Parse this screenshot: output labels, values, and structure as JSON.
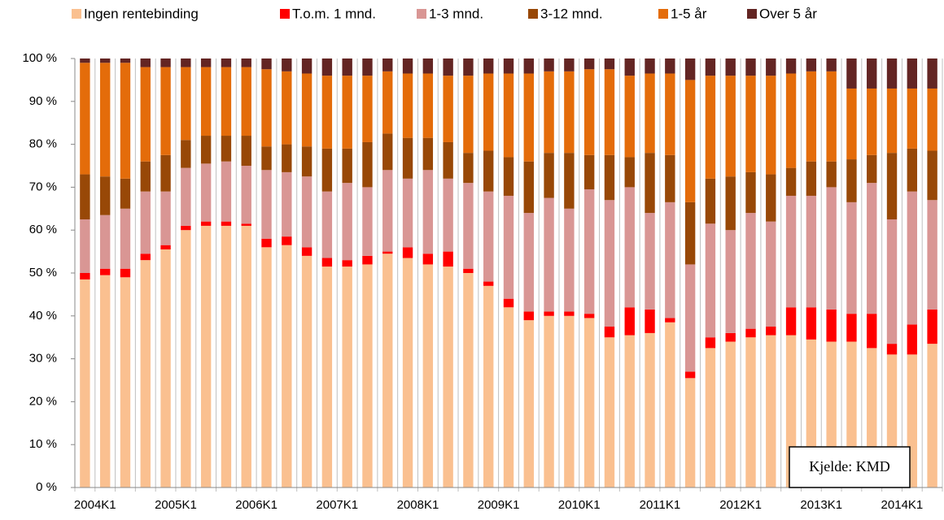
{
  "chart_data": {
    "type": "stacked-bar",
    "categories": [
      "2004K1",
      null,
      null,
      null,
      "2005K1",
      null,
      null,
      null,
      "2006K1",
      null,
      null,
      null,
      "2007K1",
      null,
      null,
      null,
      "2008K1",
      null,
      null,
      null,
      "2009K1",
      null,
      null,
      null,
      "2010K1",
      null,
      null,
      null,
      "2011K1",
      null,
      null,
      null,
      "2012K1",
      null,
      null,
      null,
      "2013K1",
      null,
      null,
      null,
      "2014K1",
      null,
      null
    ],
    "series": [
      {
        "name": "Ingen rentebinding",
        "color": "#fac090",
        "values": [
          48.5,
          49.5,
          49,
          53,
          55.5,
          60,
          61,
          61,
          61,
          56,
          56.5,
          54,
          51.5,
          51.5,
          52,
          54.5,
          53.5,
          52,
          51.5,
          50,
          47,
          42,
          39,
          40,
          40,
          39.5,
          35,
          35.5,
          36,
          38.5,
          25.5,
          32.5,
          34,
          35,
          35.5,
          35.5,
          34.5,
          34,
          34,
          32.5,
          31,
          31,
          33.5
        ]
      },
      {
        "name": "T.o.m. 1 mnd.",
        "color": "#ff0000",
        "values": [
          1.5,
          1.5,
          2,
          1.5,
          1,
          1,
          1,
          1,
          0.5,
          2,
          2,
          2,
          2,
          1.5,
          2,
          0.5,
          2.5,
          2.5,
          3.5,
          1,
          1,
          2,
          2,
          1,
          1,
          1,
          2.5,
          6.5,
          5.5,
          1,
          1.5,
          2.5,
          2,
          2,
          2,
          6.5,
          7.5,
          7.5,
          6.5,
          8,
          2.5,
          7,
          8
        ]
      },
      {
        "name": "1-3 mnd.",
        "color": "#d99694",
        "values": [
          12.5,
          12.5,
          14,
          14.5,
          12.5,
          13.5,
          13.5,
          14,
          13.5,
          16,
          15,
          16.5,
          15.5,
          18,
          16,
          19,
          16,
          19.5,
          17,
          20,
          21,
          24,
          23,
          26.5,
          24,
          29,
          29.5,
          28,
          22.5,
          27,
          25,
          26.5,
          24,
          27,
          24.5,
          26,
          26,
          28.5,
          26,
          30.5,
          29,
          31,
          25.5
        ]
      },
      {
        "name": "3-12 mnd.",
        "color": "#984807",
        "values": [
          10.5,
          9,
          7,
          7,
          8.5,
          6.5,
          6.5,
          6,
          7,
          5.5,
          6.5,
          7,
          10,
          8,
          10.5,
          8.5,
          9.5,
          7.5,
          8.5,
          7,
          9.5,
          9,
          12,
          10.5,
          13,
          8,
          10.5,
          7,
          14,
          11,
          14.5,
          10.5,
          12.5,
          9.5,
          11,
          6.5,
          8,
          6,
          10,
          6.5,
          15.5,
          10,
          11.5
        ]
      },
      {
        "name": "1-5 år",
        "color": "#e46c0a",
        "values": [
          26,
          26.5,
          27,
          22,
          20.5,
          17,
          16,
          16,
          16,
          18,
          17,
          17,
          17,
          17,
          15.5,
          14.5,
          15,
          15,
          15.5,
          18,
          18,
          19.5,
          20.5,
          19,
          19,
          20,
          20,
          19,
          18.5,
          19,
          28.5,
          24,
          23.5,
          22.5,
          23,
          22,
          21,
          21,
          16.5,
          15.5,
          15,
          14,
          14.5
        ]
      },
      {
        "name": "Over 5 år",
        "color": "#632523",
        "values": [
          1,
          1,
          1,
          2,
          2,
          2,
          2,
          2,
          2,
          2.5,
          3,
          3.5,
          4,
          4,
          4,
          3,
          3.5,
          3.5,
          4,
          4,
          3.5,
          3.5,
          3.5,
          3,
          3,
          2.5,
          2.5,
          4,
          3.5,
          3.5,
          5,
          4,
          4,
          4,
          4,
          3.5,
          3,
          3,
          7,
          7,
          7,
          7,
          7
        ]
      }
    ],
    "ylim": [
      0,
      100
    ],
    "yticks": [
      {
        "value": 0,
        "label": "0 %"
      },
      {
        "value": 10,
        "label": "10 %"
      },
      {
        "value": 20,
        "label": "20 %"
      },
      {
        "value": 30,
        "label": "30 %"
      },
      {
        "value": 40,
        "label": "40 %"
      },
      {
        "value": 50,
        "label": "50 %"
      },
      {
        "value": 60,
        "label": "60 %"
      },
      {
        "value": 70,
        "label": "70 %"
      },
      {
        "value": 80,
        "label": "80 %"
      },
      {
        "value": 90,
        "label": "90 %"
      },
      {
        "value": 100,
        "label": "100 %"
      }
    ],
    "source": "Kjelde: KMD"
  }
}
